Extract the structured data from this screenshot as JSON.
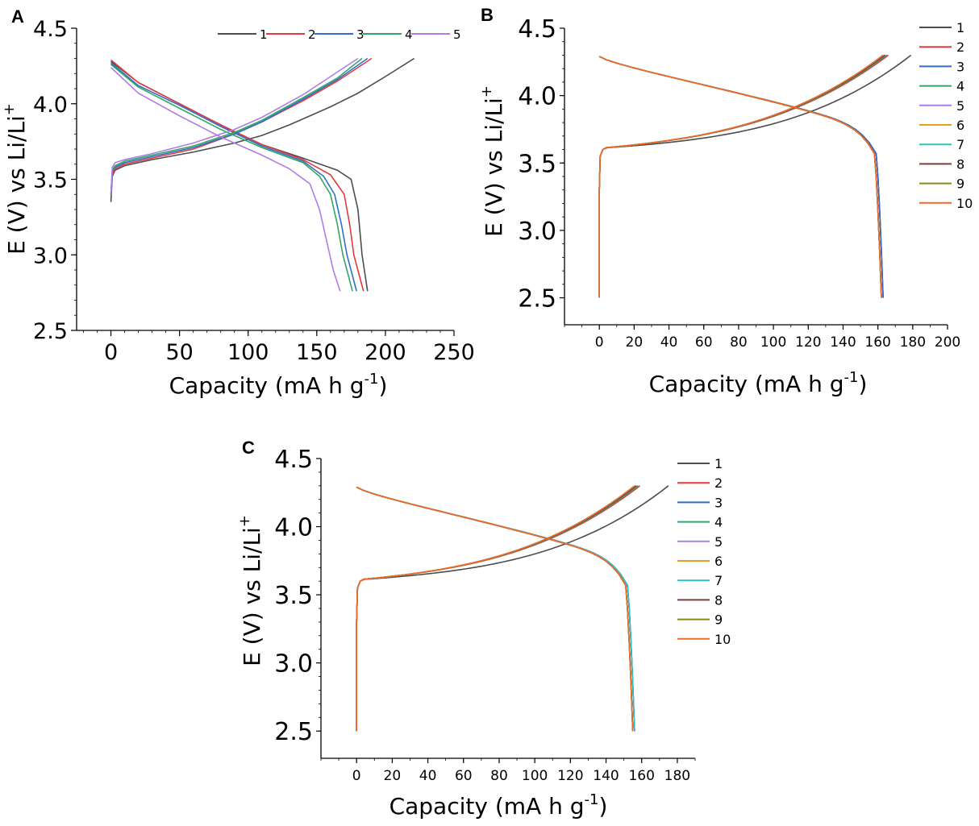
{
  "colors": {
    "1": "#4d4d4d",
    "2": "#e8383d",
    "3": "#2f6fc9",
    "4": "#2fa866",
    "5": "#b07ce6",
    "6": "#e8a020",
    "7": "#2bc3c6",
    "8": "#7a3f3f",
    "9": "#8a8a1a",
    "10": "#f06b2a"
  },
  "chart_data": [
    {
      "panel": "A",
      "type": "line",
      "xlabel": "Capacity (mA h g-1)",
      "ylabel": "E (V) vs Li/Li+",
      "xlim": [
        -25,
        250
      ],
      "ylim": [
        2.5,
        4.5
      ],
      "xticks": [
        "0",
        "50",
        "100",
        "150",
        "200",
        "250"
      ],
      "yticks": [
        "2.5",
        "3.0",
        "3.5",
        "4.0",
        "4.5"
      ],
      "legend_position": "top (horizontal)",
      "series": [
        {
          "name": "1",
          "color_key": "1",
          "charge": [
            [
              0,
              3.35
            ],
            [
              1,
              3.52
            ],
            [
              3,
              3.56
            ],
            [
              10,
              3.59
            ],
            [
              30,
              3.63
            ],
            [
              60,
              3.68
            ],
            [
              90,
              3.74
            ],
            [
              110,
              3.79
            ],
            [
              130,
              3.86
            ],
            [
              160,
              3.98
            ],
            [
              180,
              4.07
            ],
            [
              200,
              4.18
            ],
            [
              221,
              4.3
            ]
          ],
          "discharge": [
            [
              0,
              4.28
            ],
            [
              20,
              4.14
            ],
            [
              50,
              4.0
            ],
            [
              80,
              3.86
            ],
            [
              110,
              3.73
            ],
            [
              140,
              3.64
            ],
            [
              165,
              3.56
            ],
            [
              175,
              3.5
            ],
            [
              180,
              3.3
            ],
            [
              183,
              3.0
            ],
            [
              187,
              2.76
            ]
          ]
        },
        {
          "name": "2",
          "color_key": "2",
          "charge": [
            [
              0,
              3.4
            ],
            [
              1,
              3.53
            ],
            [
              3,
              3.57
            ],
            [
              10,
              3.6
            ],
            [
              30,
              3.64
            ],
            [
              60,
              3.7
            ],
            [
              90,
              3.8
            ],
            [
              110,
              3.88
            ],
            [
              140,
              4.02
            ],
            [
              165,
              4.15
            ],
            [
              190,
              4.3
            ]
          ],
          "discharge": [
            [
              0,
              4.29
            ],
            [
              20,
              4.14
            ],
            [
              50,
              4.0
            ],
            [
              80,
              3.86
            ],
            [
              110,
              3.73
            ],
            [
              140,
              3.63
            ],
            [
              160,
              3.53
            ],
            [
              170,
              3.4
            ],
            [
              174,
              3.2
            ],
            [
              177,
              3.0
            ],
            [
              184,
              2.76
            ]
          ]
        },
        {
          "name": "3",
          "color_key": "3",
          "charge": [
            [
              0,
              3.4
            ],
            [
              1,
              3.55
            ],
            [
              3,
              3.58
            ],
            [
              10,
              3.61
            ],
            [
              30,
              3.65
            ],
            [
              60,
              3.71
            ],
            [
              90,
              3.8
            ],
            [
              110,
              3.88
            ],
            [
              140,
              4.03
            ],
            [
              165,
              4.16
            ],
            [
              187,
              4.3
            ]
          ],
          "discharge": [
            [
              0,
              4.27
            ],
            [
              20,
              4.12
            ],
            [
              50,
              3.99
            ],
            [
              80,
              3.85
            ],
            [
              110,
              3.72
            ],
            [
              140,
              3.62
            ],
            [
              155,
              3.52
            ],
            [
              163,
              3.4
            ],
            [
              168,
              3.2
            ],
            [
              172,
              3.0
            ],
            [
              179,
              2.76
            ]
          ]
        },
        {
          "name": "4",
          "color_key": "4",
          "charge": [
            [
              0,
              3.4
            ],
            [
              1,
              3.56
            ],
            [
              3,
              3.59
            ],
            [
              10,
              3.62
            ],
            [
              30,
              3.66
            ],
            [
              60,
              3.72
            ],
            [
              90,
              3.81
            ],
            [
              110,
              3.89
            ],
            [
              140,
              4.04
            ],
            [
              165,
              4.17
            ],
            [
              183,
              4.3
            ]
          ],
          "discharge": [
            [
              0,
              4.26
            ],
            [
              20,
              4.11
            ],
            [
              50,
              3.97
            ],
            [
              80,
              3.83
            ],
            [
              110,
              3.71
            ],
            [
              140,
              3.61
            ],
            [
              152,
              3.52
            ],
            [
              160,
              3.4
            ],
            [
              165,
              3.2
            ],
            [
              169,
              3.0
            ],
            [
              176,
              2.76
            ]
          ]
        },
        {
          "name": "5",
          "color_key": "5",
          "charge": [
            [
              0,
              3.4
            ],
            [
              1,
              3.58
            ],
            [
              3,
              3.61
            ],
            [
              10,
              3.63
            ],
            [
              30,
              3.67
            ],
            [
              60,
              3.74
            ],
            [
              90,
              3.83
            ],
            [
              110,
              3.91
            ],
            [
              140,
              4.06
            ],
            [
              160,
              4.18
            ],
            [
              180,
              4.3
            ]
          ],
          "discharge": [
            [
              0,
              4.24
            ],
            [
              20,
              4.07
            ],
            [
              50,
              3.92
            ],
            [
              80,
              3.78
            ],
            [
              110,
              3.66
            ],
            [
              130,
              3.57
            ],
            [
              145,
              3.47
            ],
            [
              152,
              3.3
            ],
            [
              157,
              3.1
            ],
            [
              162,
              2.9
            ],
            [
              167,
              2.76
            ]
          ]
        }
      ]
    },
    {
      "panel": "B",
      "type": "line",
      "xlabel": "Capacity (mA h g-1)",
      "ylabel": "E (V) vs Li/Li+",
      "xlim": [
        -20,
        200
      ],
      "ylim": [
        2.3,
        4.5
      ],
      "xticks": [
        "0",
        "20",
        "40",
        "60",
        "80",
        "100",
        "120",
        "140",
        "160",
        "180",
        "200"
      ],
      "yticks": [
        "2.5",
        "3.0",
        "3.5",
        "4.0",
        "4.5"
      ],
      "legend_position": "right",
      "series": [
        {
          "name": "1",
          "color_key": "1",
          "end_charge": 179,
          "end_discharge": 163
        },
        {
          "name": "2",
          "color_key": "2",
          "end_charge": 166,
          "end_discharge": 163
        },
        {
          "name": "3",
          "color_key": "3",
          "end_charge": 165,
          "end_discharge": 163
        },
        {
          "name": "4",
          "color_key": "4",
          "end_charge": 165,
          "end_discharge": 162
        },
        {
          "name": "5",
          "color_key": "5",
          "end_charge": 164,
          "end_discharge": 162
        },
        {
          "name": "6",
          "color_key": "6",
          "end_charge": 164,
          "end_discharge": 162
        },
        {
          "name": "7",
          "color_key": "7",
          "end_charge": 164,
          "end_discharge": 162
        },
        {
          "name": "8",
          "color_key": "8",
          "end_charge": 164,
          "end_discharge": 162
        },
        {
          "name": "9",
          "color_key": "9",
          "end_charge": 163,
          "end_discharge": 162
        },
        {
          "name": "10",
          "color_key": "10",
          "end_charge": 163,
          "end_discharge": 162
        }
      ]
    },
    {
      "panel": "C",
      "type": "line",
      "xlabel": "Capacity (mA h g-1)",
      "ylabel": "E (V) vs Li/Li+",
      "xlim": [
        -20,
        190
      ],
      "ylim": [
        2.3,
        4.5
      ],
      "xticks": [
        "0",
        "20",
        "40",
        "60",
        "80",
        "100",
        "120",
        "140",
        "160",
        "180"
      ],
      "yticks": [
        "2.5",
        "3.0",
        "3.5",
        "4.0",
        "4.5"
      ],
      "legend_position": "right",
      "series": [
        {
          "name": "1",
          "color_key": "1",
          "end_charge": 175,
          "end_discharge": 156
        },
        {
          "name": "2",
          "color_key": "2",
          "end_charge": 159,
          "end_discharge": 156
        },
        {
          "name": "3",
          "color_key": "3",
          "end_charge": 158,
          "end_discharge": 156
        },
        {
          "name": "4",
          "color_key": "4",
          "end_charge": 158,
          "end_discharge": 155
        },
        {
          "name": "5",
          "color_key": "5",
          "end_charge": 157,
          "end_discharge": 155
        },
        {
          "name": "6",
          "color_key": "6",
          "end_charge": 157,
          "end_discharge": 155
        },
        {
          "name": "7",
          "color_key": "7",
          "end_charge": 157,
          "end_discharge": 156
        },
        {
          "name": "8",
          "color_key": "8",
          "end_charge": 157,
          "end_discharge": 155
        },
        {
          "name": "9",
          "color_key": "9",
          "end_charge": 156,
          "end_discharge": 155
        },
        {
          "name": "10",
          "color_key": "10",
          "end_charge": 156,
          "end_discharge": 155
        }
      ]
    }
  ]
}
